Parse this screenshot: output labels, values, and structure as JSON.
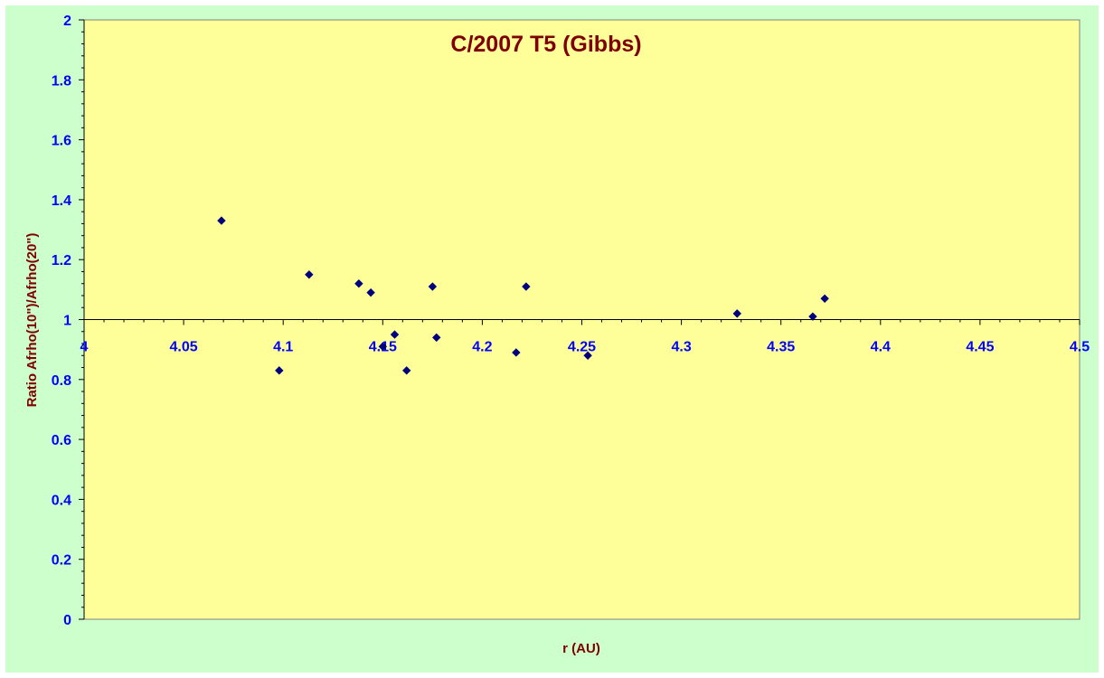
{
  "chart_data": {
    "type": "scatter",
    "title": "C/2007 T5 (Gibbs)",
    "xlabel": "r (AU)",
    "ylabel": "Ratio Afrho(10\")/Afrho(20\")",
    "xlim": [
      4,
      4.5
    ],
    "ylim": [
      0,
      2
    ],
    "x_ticks": [
      4,
      4.05,
      4.1,
      4.15,
      4.2,
      4.25,
      4.3,
      4.35,
      4.4,
      4.45,
      4.5
    ],
    "x_tick_labels": [
      "4",
      "4.05",
      "4.1",
      "4.15",
      "4.2",
      "4.25",
      "4.3",
      "4.35",
      "4.4",
      "4.45",
      "4.5"
    ],
    "y_ticks": [
      0,
      0.2,
      0.4,
      0.6,
      0.8,
      1,
      1.2,
      1.4,
      1.6,
      1.8,
      2
    ],
    "y_tick_labels": [
      "0",
      "0.2",
      "0.4",
      "0.6",
      "0.8",
      "1",
      "1.2",
      "1.4",
      "1.6",
      "1.8",
      "2"
    ],
    "x_axis_crosses_y": 1,
    "grid": false,
    "legend": "none",
    "series": [
      {
        "points": [
          {
            "x": 4.069,
            "y": 1.33
          },
          {
            "x": 4.098,
            "y": 0.83
          },
          {
            "x": 4.113,
            "y": 1.15
          },
          {
            "x": 4.138,
            "y": 1.12
          },
          {
            "x": 4.144,
            "y": 1.09
          },
          {
            "x": 4.15,
            "y": 0.91
          },
          {
            "x": 4.156,
            "y": 0.95
          },
          {
            "x": 4.162,
            "y": 0.83
          },
          {
            "x": 4.175,
            "y": 1.11
          },
          {
            "x": 4.177,
            "y": 0.94
          },
          {
            "x": 4.217,
            "y": 0.89
          },
          {
            "x": 4.222,
            "y": 1.11
          },
          {
            "x": 4.253,
            "y": 0.88
          },
          {
            "x": 4.328,
            "y": 1.02
          },
          {
            "x": 4.366,
            "y": 1.01
          },
          {
            "x": 4.372,
            "y": 1.07
          }
        ]
      }
    ],
    "colors": {
      "outer_background": "#ccffcc",
      "plot_background": "#ffff99",
      "marker": "#00007f",
      "title": "#7f0000",
      "axis_label": "#7f0000",
      "tick_label": "#0000ff",
      "axis_line": "#000000"
    }
  }
}
